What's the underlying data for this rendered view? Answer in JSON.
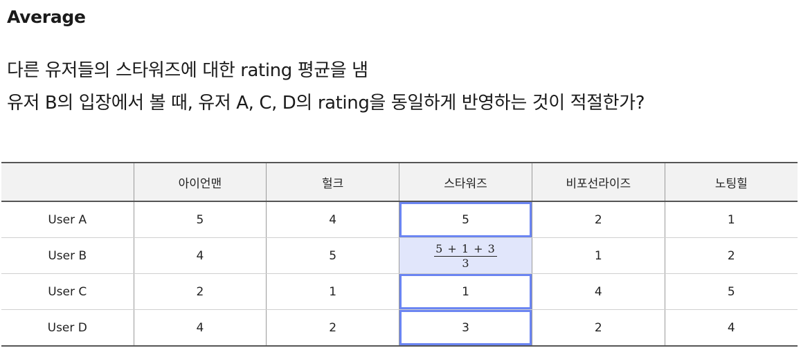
{
  "title": "Average",
  "description": [
    "다른 유저들의 스타워즈에 대한 rating 평균을 냄",
    "유저 B의 입장에서 볼 때, 유저 A, C, D의 rating을 동일하게 반영하는 것이 적절한가?"
  ],
  "table": {
    "corner": "",
    "columns": [
      "아이언맨",
      "헐크",
      "스타워즈",
      "비포선라이즈",
      "노팅힐"
    ],
    "rows": [
      {
        "user": "User A",
        "cells": [
          "5",
          "4",
          "5",
          "2",
          "1"
        ]
      },
      {
        "user": "User B",
        "cells": [
          "4",
          "5",
          "",
          "1",
          "2"
        ]
      },
      {
        "user": "User C",
        "cells": [
          "2",
          "1",
          "1",
          "4",
          "5"
        ]
      },
      {
        "user": "User D",
        "cells": [
          "4",
          "2",
          "3",
          "2",
          "4"
        ]
      }
    ],
    "estimate": {
      "numerator": "5 + 1 + 3",
      "denominator": "3"
    }
  },
  "colors": {
    "highlight_border": "#6b85f2",
    "highlight_fill": "#e1e6fb",
    "header_bg": "#f2f2f2"
  }
}
